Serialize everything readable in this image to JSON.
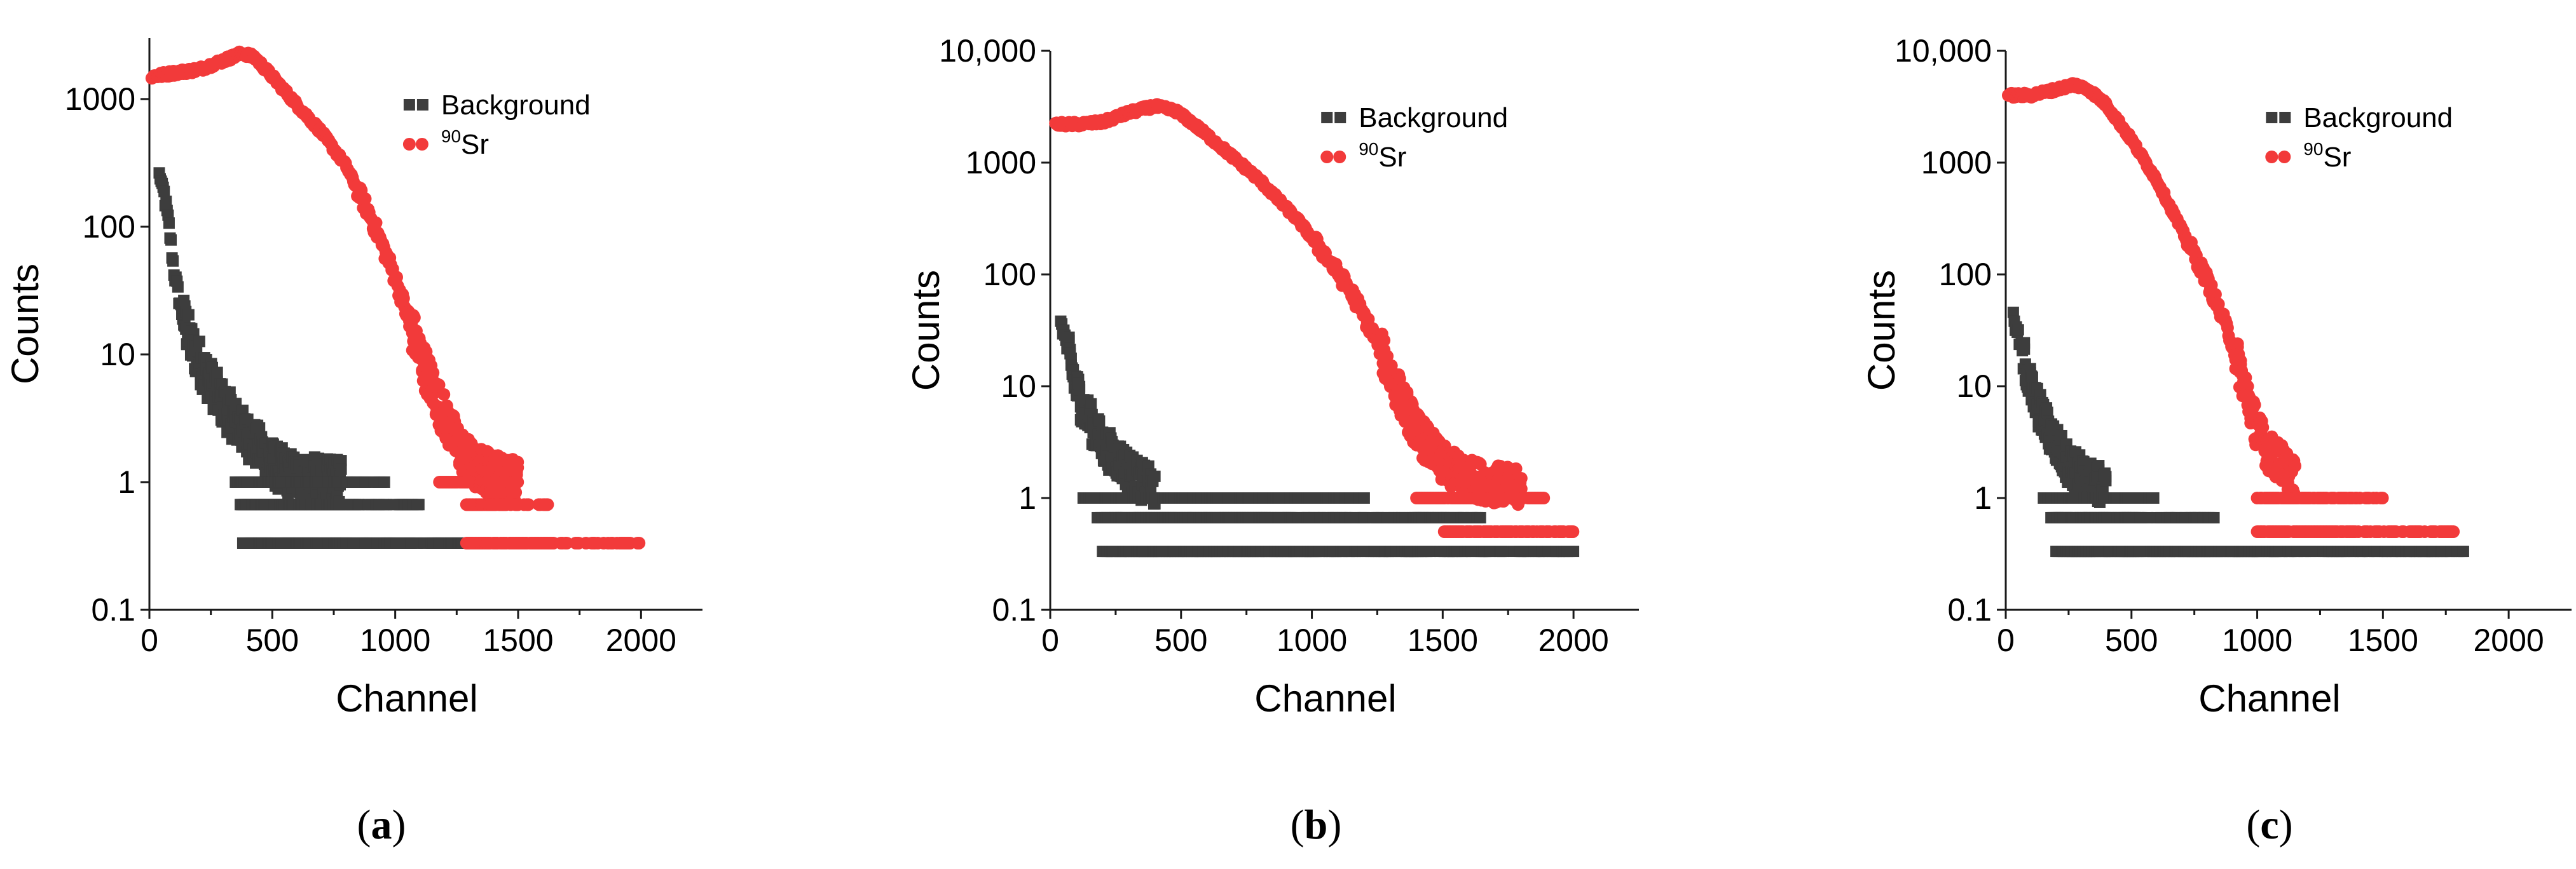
{
  "figure": {
    "colors": {
      "background_series": "#3d3d3d",
      "sr90_series": "#f23a3a",
      "axis": "#1a1a1a"
    }
  },
  "chart_data": [
    {
      "panel_label": "a",
      "type": "scatter",
      "xlabel": "Channel",
      "ylabel": "Counts",
      "yscale": "log",
      "xlim": [
        0,
        2250
      ],
      "ylim": [
        0.1,
        3000
      ],
      "x_ticks": [
        0,
        500,
        1000,
        1500,
        2000
      ],
      "x_tick_labels": [
        "0",
        "500",
        "1000",
        "1500",
        "2000"
      ],
      "y_ticks": [
        0.1,
        1,
        10,
        100,
        1000
      ],
      "y_tick_labels": [
        "0.1",
        "1",
        "10",
        "100",
        "1000"
      ],
      "legend": {
        "position": "top-right",
        "entries": [
          {
            "label": "Background",
            "marker": "square",
            "color": "#3d3d3d"
          },
          {
            "label_prefix": "90",
            "label": "Sr",
            "marker": "circle",
            "color": "#f23a3a"
          }
        ]
      },
      "series": [
        {
          "name": "Background",
          "marker": "square",
          "color": "#3d3d3d",
          "curve": [
            [
              40,
              260
            ],
            [
              60,
              180
            ],
            [
              80,
              100
            ],
            [
              100,
              45
            ],
            [
              130,
              22
            ],
            [
              170,
              12
            ],
            [
              230,
              7
            ],
            [
              300,
              4
            ],
            [
              380,
              2.5
            ],
            [
              450,
              1.8
            ],
            [
              520,
              1.3
            ],
            [
              600,
              1.1
            ],
            [
              780,
              1
            ]
          ],
          "levels": [
            {
              "y": 1,
              "x_range": [
                350,
                960
              ]
            },
            {
              "y": 0.667,
              "x_range": [
                370,
                1100
              ]
            },
            {
              "y": 0.333,
              "x_range": [
                380,
                1290
              ]
            }
          ]
        },
        {
          "name": "90Sr",
          "marker": "circle",
          "color": "#f23a3a",
          "curve": [
            [
              10,
              1500
            ],
            [
              100,
              1600
            ],
            [
              200,
              1700
            ],
            [
              300,
              2000
            ],
            [
              380,
              2300
            ],
            [
              430,
              2100
            ],
            [
              500,
              1500
            ],
            [
              600,
              900
            ],
            [
              700,
              550
            ],
            [
              800,
              300
            ],
            [
              900,
              120
            ],
            [
              1000,
              40
            ],
            [
              1100,
              10
            ],
            [
              1180,
              4
            ],
            [
              1250,
              2
            ],
            [
              1320,
              1.3
            ],
            [
              1500,
              1
            ]
          ],
          "levels": [
            {
              "y": 1,
              "x_range": [
                1180,
                1510
              ]
            },
            {
              "y": 0.667,
              "x_range": [
                1290,
                1620
              ]
            },
            {
              "y": 0.333,
              "x_range": [
                1290,
                2000
              ]
            }
          ]
        }
      ]
    },
    {
      "panel_label": "b",
      "type": "scatter",
      "xlabel": "Channel",
      "ylabel": "Counts",
      "yscale": "log",
      "xlim": [
        0,
        2250
      ],
      "ylim": [
        0.1,
        10000
      ],
      "x_ticks": [
        0,
        500,
        1000,
        1500,
        2000
      ],
      "x_tick_labels": [
        "0",
        "500",
        "1000",
        "1500",
        "2000"
      ],
      "y_ticks": [
        0.1,
        1,
        10,
        100,
        1000,
        10000
      ],
      "y_tick_labels": [
        "0.1",
        "1",
        "10",
        "100",
        "1000",
        "10,000"
      ],
      "legend": {
        "position": "top-right",
        "entries": [
          {
            "label": "Background",
            "marker": "square",
            "color": "#3d3d3d"
          },
          {
            "label_prefix": "90",
            "label": "Sr",
            "marker": "circle",
            "color": "#f23a3a"
          }
        ]
      },
      "series": [
        {
          "name": "Background",
          "marker": "square",
          "color": "#3d3d3d",
          "curve": [
            [
              40,
              40
            ],
            [
              60,
              25
            ],
            [
              80,
              15
            ],
            [
              110,
              8
            ],
            [
              150,
              5
            ],
            [
              200,
              3
            ],
            [
              280,
              2
            ],
            [
              330,
              1.5
            ],
            [
              400,
              1.2
            ]
          ],
          "levels": [
            {
              "y": 1,
              "x_range": [
                120,
                1200
              ]
            },
            {
              "y": 0.667,
              "x_range": [
                180,
                1650
              ]
            },
            {
              "y": 0.333,
              "x_range": [
                200,
                2000
              ]
            }
          ]
        },
        {
          "name": "90Sr",
          "marker": "circle",
          "color": "#f23a3a",
          "curve": [
            [
              20,
              2200
            ],
            [
              100,
              2200
            ],
            [
              200,
              2300
            ],
            [
              300,
              2800
            ],
            [
              400,
              3200
            ],
            [
              480,
              2900
            ],
            [
              550,
              2200
            ],
            [
              650,
              1400
            ],
            [
              800,
              700
            ],
            [
              950,
              300
            ],
            [
              1050,
              150
            ],
            [
              1150,
              70
            ],
            [
              1250,
              25
            ],
            [
              1320,
              10
            ],
            [
              1400,
              4
            ],
            [
              1500,
              2
            ],
            [
              1600,
              1.5
            ],
            [
              1800,
              1.2
            ]
          ],
          "levels": [
            {
              "y": 1,
              "x_range": [
                1400,
                1900
              ]
            },
            {
              "y": 0.5,
              "x_range": [
                1500,
                2000
              ]
            }
          ]
        }
      ]
    },
    {
      "panel_label": "c",
      "type": "scatter",
      "xlabel": "Channel",
      "ylabel": "Counts",
      "yscale": "log",
      "xlim": [
        0,
        2250
      ],
      "ylim": [
        0.1,
        10000
      ],
      "x_ticks": [
        0,
        500,
        1000,
        1500,
        2000
      ],
      "x_tick_labels": [
        "0",
        "500",
        "1000",
        "1500",
        "2000"
      ],
      "y_ticks": [
        0.1,
        1,
        10,
        100,
        1000,
        10000
      ],
      "y_tick_labels": [
        "0.1",
        "1",
        "10",
        "100",
        "1000",
        "10,000"
      ],
      "legend": {
        "position": "top-right",
        "entries": [
          {
            "label": "Background",
            "marker": "square",
            "color": "#3d3d3d"
          },
          {
            "label_prefix": "90",
            "label": "Sr",
            "marker": "circle",
            "color": "#f23a3a"
          }
        ]
      },
      "series": [
        {
          "name": "Background",
          "marker": "square",
          "color": "#3d3d3d",
          "curve": [
            [
              30,
              40
            ],
            [
              50,
              28
            ],
            [
              80,
              15
            ],
            [
              110,
              8
            ],
            [
              150,
              5
            ],
            [
              200,
              3
            ],
            [
              250,
              2
            ],
            [
              320,
              1.5
            ],
            [
              400,
              1.2
            ]
          ],
          "levels": [
            {
              "y": 1,
              "x_range": [
                150,
                600
              ]
            },
            {
              "y": 0.667,
              "x_range": [
                180,
                850
              ]
            },
            {
              "y": 0.333,
              "x_range": [
                200,
                1820
              ]
            }
          ]
        },
        {
          "name": "90Sr",
          "marker": "circle",
          "color": "#f23a3a",
          "curve": [
            [
              10,
              4000
            ],
            [
              100,
              4000
            ],
            [
              200,
              4500
            ],
            [
              270,
              5000
            ],
            [
              330,
              4500
            ],
            [
              400,
              3300
            ],
            [
              500,
              1600
            ],
            [
              600,
              700
            ],
            [
              700,
              250
            ],
            [
              800,
              90
            ],
            [
              900,
              25
            ],
            [
              950,
              10
            ],
            [
              1000,
              4
            ],
            [
              1050,
              2.5
            ],
            [
              1100,
              2
            ],
            [
              1150,
              1.5
            ]
          ],
          "levels": [
            {
              "y": 1,
              "x_range": [
                1000,
                1500
              ]
            },
            {
              "y": 0.5,
              "x_range": [
                1000,
                1780
              ]
            }
          ]
        }
      ]
    }
  ]
}
